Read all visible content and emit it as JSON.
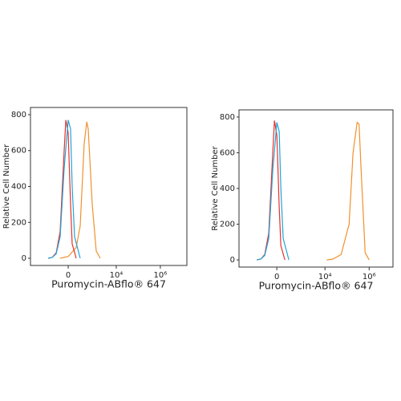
{
  "chart_data": [
    {
      "type": "line",
      "xscale": "arcsinh",
      "x_cofactor": 132,
      "xlabel": "Puromycin-ABflo® 647",
      "ylabel": "Relative Cell Number",
      "xlim": [
        -3400,
        16000000
      ],
      "ylim": [
        -40,
        840
      ],
      "xticks": [
        {
          "value": 0,
          "label": "0"
        },
        {
          "value": 10000,
          "label": "10⁴"
        },
        {
          "value": 1000000,
          "label": "10⁶"
        }
      ],
      "yticks": [
        0,
        200,
        400,
        600,
        800
      ],
      "series": [
        {
          "color": "#f0912c",
          "x": [
            -124,
            0,
            124,
            213,
            340,
            450,
            528,
            809,
            1234,
            1880
          ],
          "values": [
            0,
            10,
            60,
            180,
            640,
            760,
            720,
            300,
            40,
            0
          ]
        },
        {
          "color": "#e8302a",
          "x": [
            -528,
            -340,
            -213,
            -124,
            -57,
            -33,
            0,
            33,
            57,
            124
          ],
          "values": [
            0,
            5,
            30,
            150,
            600,
            770,
            700,
            300,
            80,
            0
          ]
        },
        {
          "color": "#22a3d8",
          "x": [
            -528,
            -340,
            -213,
            -124,
            -57,
            0,
            33,
            57,
            95,
            213
          ],
          "values": [
            0,
            5,
            25,
            120,
            500,
            770,
            720,
            400,
            120,
            0
          ]
        }
      ]
    },
    {
      "type": "line",
      "xscale": "arcsinh",
      "x_cofactor": 132,
      "xlabel": "Puromycin-ABflo® 647",
      "ylabel": "Relative Cell Number",
      "xlim": [
        -3400,
        12000000
      ],
      "ylim": [
        -40,
        840
      ],
      "xticks": [
        {
          "value": 0,
          "label": "0"
        },
        {
          "value": 10000,
          "label": "10⁴"
        },
        {
          "value": 1000000,
          "label": "10⁶"
        }
      ],
      "yticks": [
        0,
        200,
        400,
        600,
        800
      ],
      "series": [
        {
          "color": "#f0912c",
          "x": [
            12000,
            23100,
            53600,
            124000,
            187000,
            285000,
            350000,
            434000,
            660000,
            998000
          ],
          "values": [
            0,
            5,
            30,
            200,
            600,
            770,
            760,
            500,
            40,
            0
          ]
        },
        {
          "color": "#e8302a",
          "x": [
            -528,
            -340,
            -213,
            -124,
            -57,
            -33,
            0,
            33,
            57,
            124
          ],
          "values": [
            0,
            5,
            30,
            150,
            600,
            780,
            700,
            300,
            80,
            0
          ]
        },
        {
          "color": "#22a3d8",
          "x": [
            -528,
            -340,
            -213,
            -124,
            -57,
            0,
            33,
            57,
            95,
            213
          ],
          "values": [
            0,
            5,
            25,
            120,
            500,
            770,
            720,
            400,
            120,
            0
          ]
        }
      ]
    }
  ]
}
